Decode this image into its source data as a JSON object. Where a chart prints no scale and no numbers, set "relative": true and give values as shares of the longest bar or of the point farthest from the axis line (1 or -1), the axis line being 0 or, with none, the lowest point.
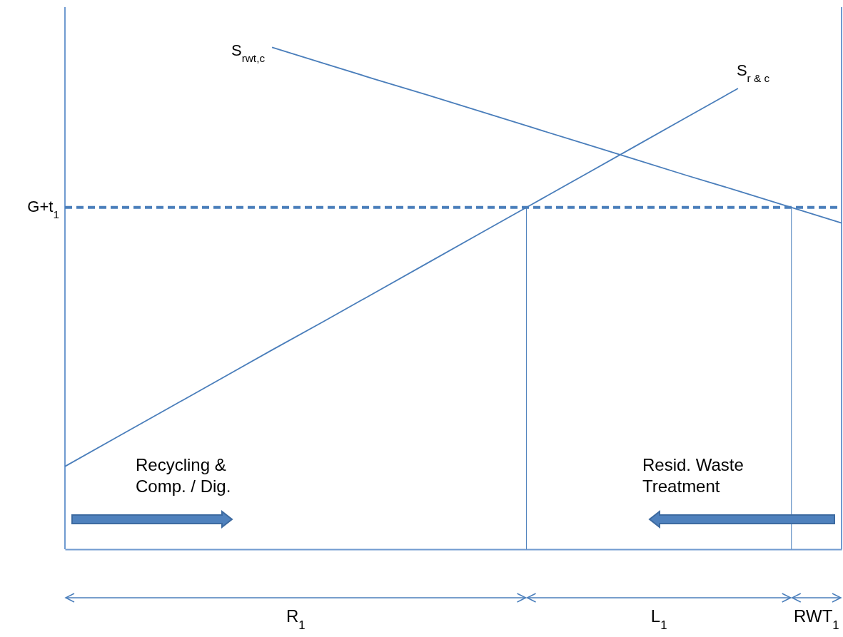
{
  "chart_data": {
    "type": "line",
    "relative": true,
    "categories": [
      null,
      null,
      null,
      null,
      null,
      null,
      null,
      null,
      null,
      null,
      null,
      null,
      null,
      null,
      null,
      null
    ],
    "series": [
      {
        "name": "S$_{rwt,c}$",
        "color": "#4a7ebb",
        "values": [
          null,
          null,
          null,
          null,
          1.0,
          0.968,
          0.936,
          0.905,
          0.873,
          0.841,
          0.809,
          0.777,
          0.745,
          0.714,
          0.682,
          0.65
        ]
      },
      {
        "name": "S$_{r & c}$",
        "color": "#4a7ebb",
        "values": [
          0.165,
          0.223,
          0.281,
          0.339,
          0.397,
          0.454,
          0.512,
          0.57,
          0.628,
          0.686,
          0.744,
          0.802,
          0.86,
          0.918,
          null,
          null
        ]
      }
    ],
    "ref_lines": [
      {
        "axis": "y",
        "value": 0.681,
        "label": "G+t$_{1}$",
        "color": "#4a7ebb",
        "line_style": "dashed"
      }
    ],
    "annotations": [
      "Recycling &\nComp. / Dig.",
      "Resid. Waste\nTreatment",
      "R$_{1}$",
      "L$_{1}$",
      "RWT$_{1}$"
    ]
  }
}
